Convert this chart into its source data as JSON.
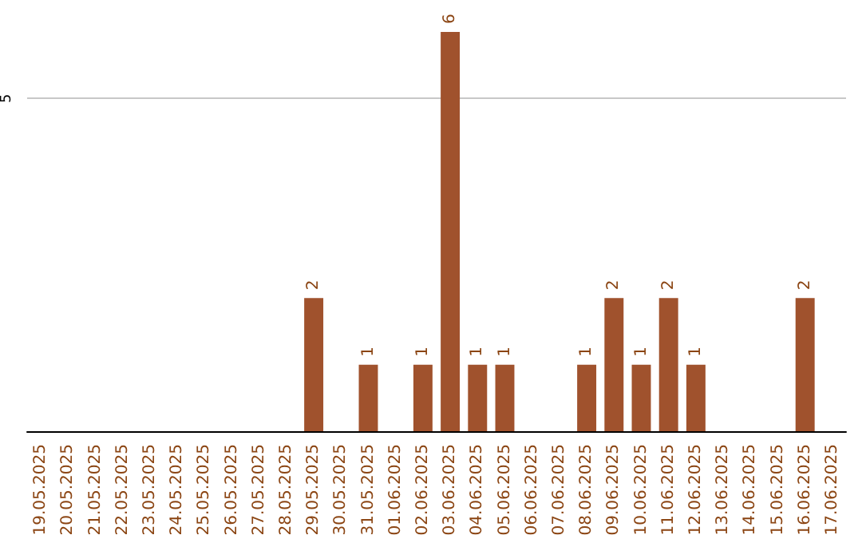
{
  "chart_data": {
    "type": "bar",
    "categories": [
      "19.05.2025",
      "20.05.2025",
      "21.05.2025",
      "22.05.2025",
      "23.05.2025",
      "24.05.2025",
      "25.05.2025",
      "26.05.2025",
      "27.05.2025",
      "28.05.2025",
      "29.05.2025",
      "30.05.2025",
      "31.05.2025",
      "01.06.2025",
      "02.06.2025",
      "03.06.2025",
      "04.06.2025",
      "05.06.2025",
      "06.06.2025",
      "07.06.2025",
      "08.06.2025",
      "09.06.2025",
      "10.06.2025",
      "11.06.2025",
      "12.06.2025",
      "13.06.2025",
      "14.06.2025",
      "15.06.2025",
      "16.06.2025",
      "17.06.2025"
    ],
    "values": [
      0,
      0,
      0,
      0,
      0,
      0,
      0,
      0,
      0,
      0,
      2,
      0,
      1,
      0,
      1,
      6,
      1,
      1,
      0,
      0,
      1,
      2,
      1,
      2,
      1,
      0,
      0,
      0,
      2,
      0
    ],
    "value_labels": [
      null,
      null,
      null,
      null,
      null,
      null,
      null,
      null,
      null,
      null,
      "2",
      null,
      "1",
      null,
      "1",
      "6",
      "1",
      "1",
      null,
      null,
      "1",
      "2",
      "1",
      "2",
      "1",
      null,
      null,
      null,
      "2",
      null
    ],
    "color": "#a0522d",
    "ylim": [
      0,
      6
    ],
    "yticks": [
      5
    ],
    "grid": "y"
  }
}
